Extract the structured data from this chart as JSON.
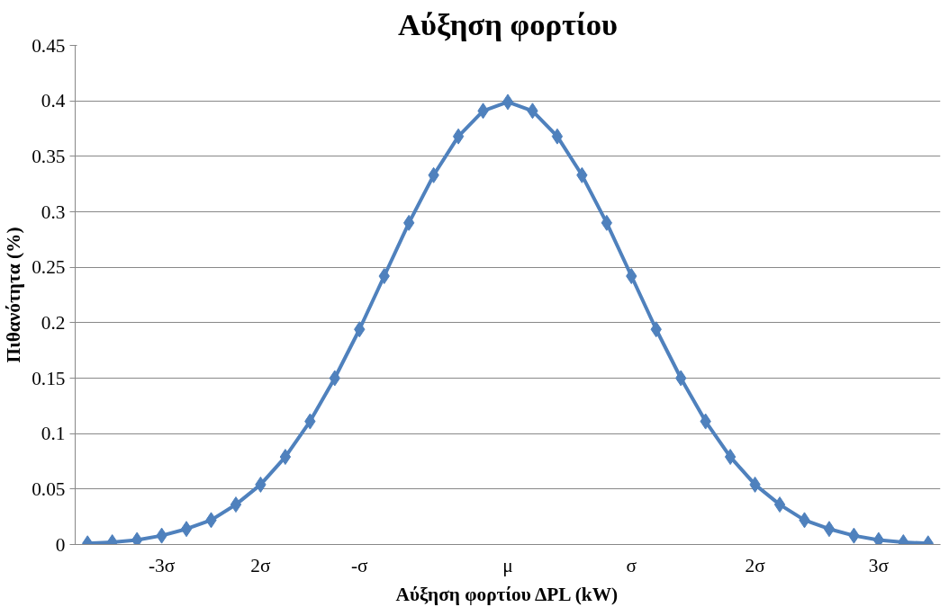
{
  "chart_data": {
    "type": "line",
    "title": "Αύξηση φορτίου",
    "xlabel": "Αύξηση φορτίου ΔPL (kW)",
    "ylabel": "Πιθανότητα (%)",
    "categories": [
      null,
      null,
      null,
      "-3σ",
      null,
      null,
      null,
      "2σ",
      null,
      null,
      null,
      "-σ",
      null,
      null,
      null,
      null,
      null,
      "μ",
      null,
      null,
      null,
      null,
      "σ",
      null,
      null,
      null,
      null,
      "2σ",
      null,
      null,
      null,
      null,
      "3σ",
      null,
      null
    ],
    "series": [
      {
        "color": "#4f81bd",
        "values": [
          0.001,
          0.002,
          0.004,
          0.008,
          0.014,
          0.022,
          0.036,
          0.054,
          0.079,
          0.111,
          0.15,
          0.194,
          0.242,
          0.29,
          0.333,
          0.368,
          0.391,
          0.399,
          0.391,
          0.368,
          0.333,
          0.29,
          0.242,
          0.194,
          0.15,
          0.111,
          0.079,
          0.054,
          0.036,
          0.022,
          0.014,
          0.008,
          0.004,
          0.002,
          0.001
        ]
      }
    ],
    "ylim": [
      0,
      0.45
    ],
    "yticks": [
      0,
      0.05,
      0.1,
      0.15,
      0.2,
      0.25,
      0.3,
      0.35,
      0.4,
      0.45
    ],
    "grid": "y",
    "marker": "diamond",
    "line_style": "solid"
  }
}
